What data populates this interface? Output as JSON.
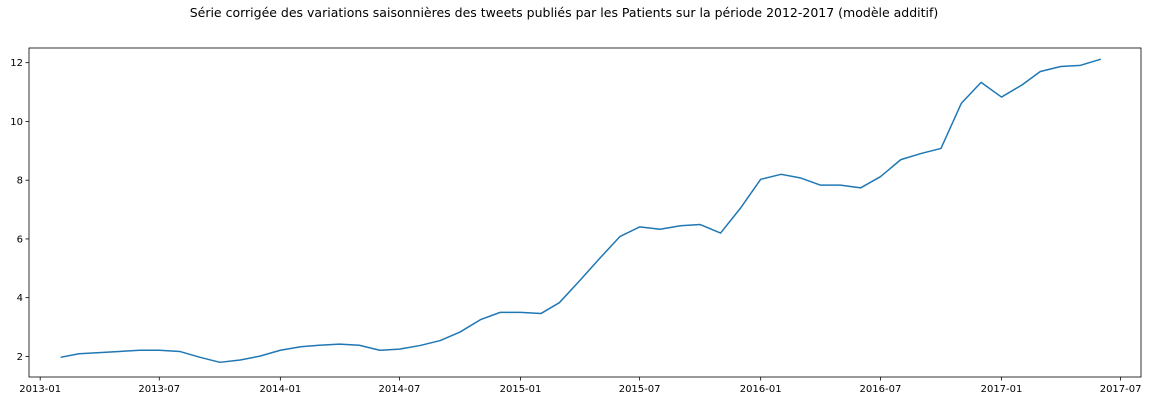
{
  "chart_data": {
    "type": "line",
    "title": "Série corrigée des variations saisonnières des tweets publiés par les Patients sur la période 2012-2017 (modèle additif)",
    "xlabel": "",
    "ylabel": "",
    "x_type": "date",
    "xlim": [
      "2012-12-15",
      "2017-08-01"
    ],
    "ylim": [
      1.3,
      12.5
    ],
    "x_ticks": [
      "2013-01",
      "2013-07",
      "2014-01",
      "2014-07",
      "2015-01",
      "2015-07",
      "2016-01",
      "2016-07",
      "2017-01",
      "2017-07"
    ],
    "y_ticks": [
      2,
      4,
      6,
      8,
      10,
      12
    ],
    "grid": false,
    "legend": null,
    "color": "#1f77b4",
    "series": [
      {
        "x": [
          "2013-02",
          "2013-03",
          "2013-04",
          "2013-05",
          "2013-06",
          "2013-07",
          "2013-08",
          "2013-09",
          "2013-10",
          "2013-11",
          "2013-12",
          "2014-01",
          "2014-02",
          "2014-03",
          "2014-04",
          "2014-05",
          "2014-06",
          "2014-07",
          "2014-08",
          "2014-09",
          "2014-10",
          "2014-11",
          "2014-12",
          "2015-01",
          "2015-02",
          "2015-03",
          "2015-04",
          "2015-05",
          "2015-06",
          "2015-07",
          "2015-08",
          "2015-09",
          "2015-10",
          "2015-11",
          "2015-12",
          "2016-01",
          "2016-02",
          "2016-03",
          "2016-04",
          "2016-05",
          "2016-06",
          "2016-07",
          "2016-08",
          "2016-09",
          "2016-10",
          "2016-11",
          "2016-12",
          "2017-01",
          "2017-02",
          "2017-03",
          "2017-04",
          "2017-05",
          "2017-06"
        ],
        "values": [
          1.97,
          2.09,
          2.13,
          2.17,
          2.21,
          2.21,
          2.17,
          1.97,
          1.8,
          1.88,
          2.01,
          2.21,
          2.33,
          2.38,
          2.42,
          2.38,
          2.21,
          2.25,
          2.37,
          2.54,
          2.83,
          3.25,
          3.5,
          3.5,
          3.46,
          3.83,
          4.58,
          5.33,
          6.08,
          6.41,
          6.33,
          6.45,
          6.49,
          6.2,
          7.04,
          8.03,
          8.2,
          8.08,
          7.83,
          7.83,
          7.74,
          8.12,
          8.7,
          8.91,
          9.08,
          10.62,
          11.33,
          10.83,
          11.24,
          11.7,
          11.87,
          11.91,
          12.12
        ]
      }
    ]
  }
}
